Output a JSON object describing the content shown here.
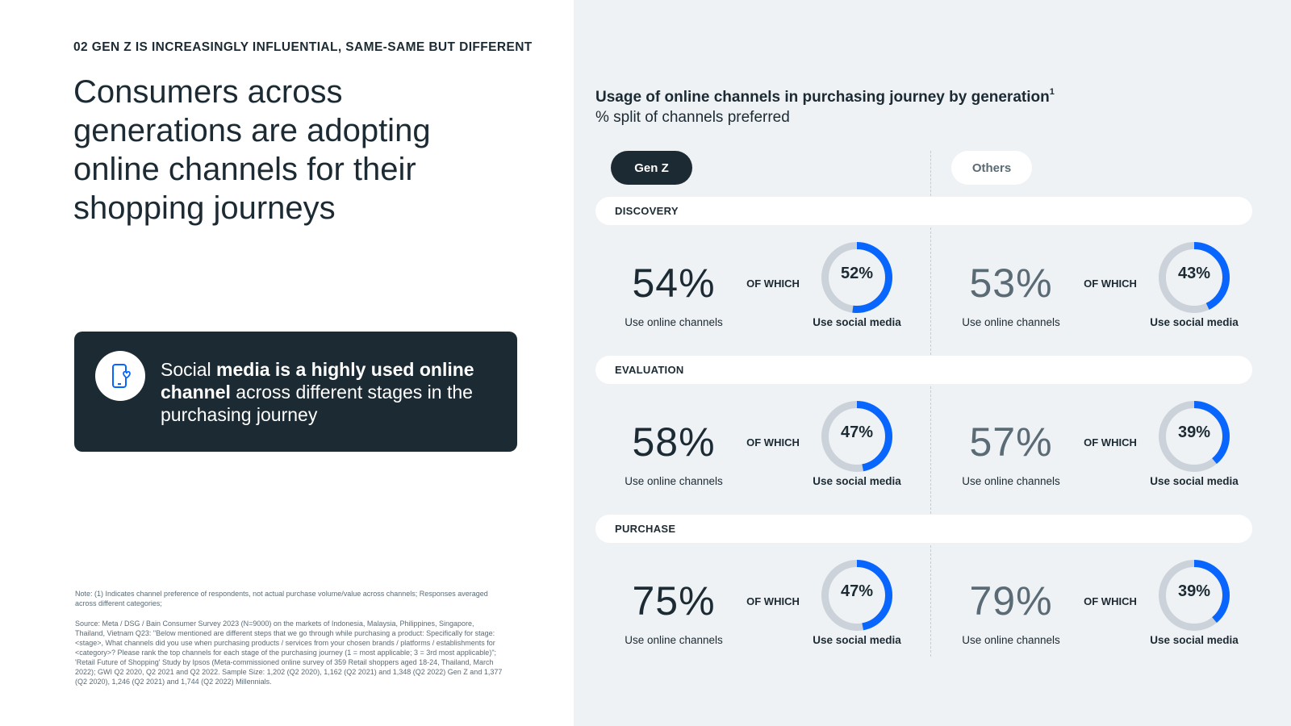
{
  "section_label": "02 GEN Z IS INCREASINGLY INFLUENTIAL, SAME-SAME BUT DIFFERENT",
  "headline": "Consumers across generations are adopting online channels for their shopping journeys",
  "callout": {
    "icon": "phone-heart-icon",
    "t1": "Social ",
    "t2": "media is a highly used online channel",
    "t3": " across different stages in the purchasing journey"
  },
  "notes": {
    "note": "Note: (1) Indicates channel preference of respondents, not actual purchase volume/value across channels; Responses averaged across different categories;",
    "source": "Source: Meta / DSG / Bain Consumer Survey 2023 (N=9000) on the markets of Indonesia, Malaysia, Philippines, Singapore, Thailand, Vietnam Q23: \"Below mentioned are different steps that we go through while purchasing a product: Specifically for stage: <stage>, What channels did you use when purchasing products / services from your chosen brands / platforms / establishments for <category>? Please rank the top channels for each stage of the purchasing journey (1 = most applicable; 3 = 3rd most applicable)\"; 'Retail Future of Shopping' Study by Ipsos (Meta-commissioned online survey of 359 Retail shoppers aged 18-24, Thailand, March 2022); GWI Q2 2020, Q2 2021 and Q2 2022. Sample Size: 1,202 (Q2 2020), 1,162 (Q2 2021) and 1,348 (Q2 2022) Gen Z and 1,377 (Q2 2020), 1,246 (Q2 2021) and 1,744 (Q2 2022) Millennials."
  },
  "colors": {
    "dark": "#1c2b33",
    "accent": "#0866ff",
    "ring": "#cbd2d9",
    "panel": "#eff2f5"
  },
  "chart_data": {
    "type": "donut",
    "title": "Usage of online channels in purchasing journey by generation",
    "title_sup": "1",
    "subtitle": "% split of channels preferred",
    "groups": [
      "Gen Z",
      "Others"
    ],
    "of_which": "OF WHICH",
    "online_label": "Use online channels",
    "social_label": "Use social media",
    "stages": [
      {
        "name": "DISCOVERY",
        "genz": {
          "online": "54%",
          "social": "52%",
          "social_value": 52
        },
        "others": {
          "online": "53%",
          "social": "43%",
          "social_value": 43
        }
      },
      {
        "name": "EVALUATION",
        "genz": {
          "online": "58%",
          "social": "47%",
          "social_value": 47
        },
        "others": {
          "online": "57%",
          "social": "39%",
          "social_value": 39
        }
      },
      {
        "name": "PURCHASE",
        "genz": {
          "online": "75%",
          "social": "47%",
          "social_value": 47
        },
        "others": {
          "online": "79%",
          "social": "39%",
          "social_value": 39
        }
      }
    ]
  }
}
